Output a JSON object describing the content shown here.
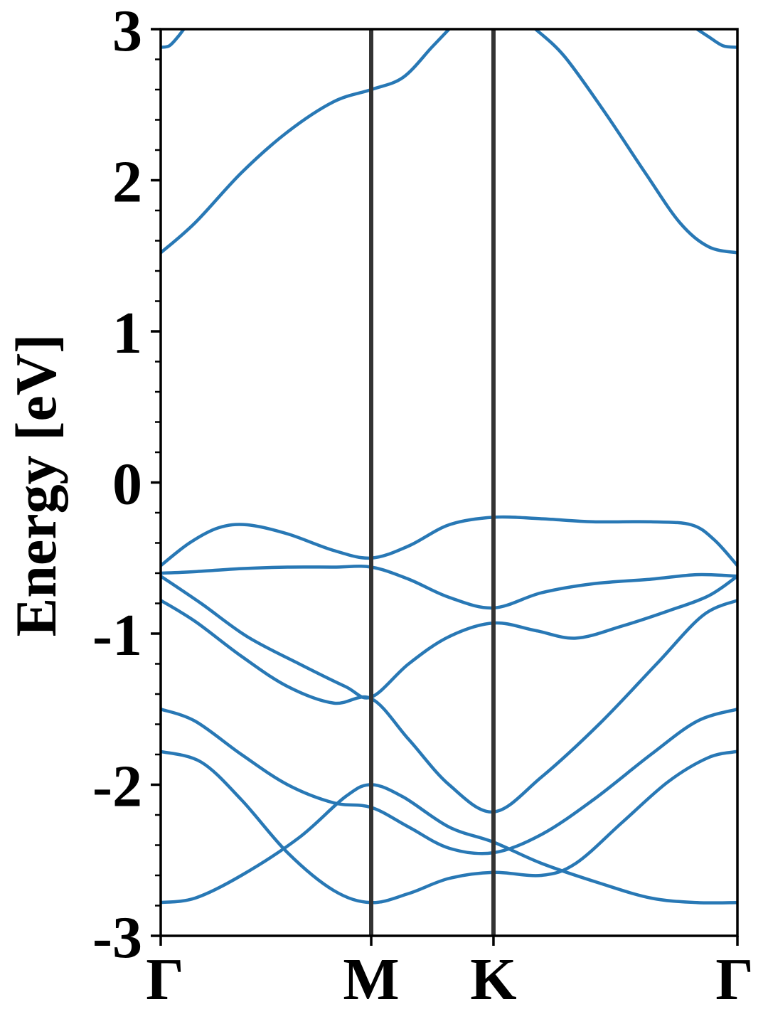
{
  "chart_data": {
    "type": "line",
    "title": "",
    "xlabel": "",
    "ylabel": "Energy [eV]",
    "ylim": [
      -3,
      3
    ],
    "y_ticks": [
      "-3",
      "-2",
      "-1",
      "0",
      "1",
      "2",
      "3"
    ],
    "y_tick_values": [
      -3,
      -2,
      -1,
      0,
      1,
      2,
      3
    ],
    "x_ticks": [
      {
        "label": "Γ",
        "pos": 0.0
      },
      {
        "label": "M",
        "pos": 0.365
      },
      {
        "label": "K",
        "pos": 0.577
      },
      {
        "label": "Γ",
        "pos": 1.0
      }
    ],
    "xlim": [
      0,
      1
    ],
    "high_symmetry_lines": [
      0.365,
      0.577
    ],
    "grid": false,
    "line_color": "#2878b5",
    "vline_color": "#333333",
    "series": [
      {
        "x": [
          0,
          0.06,
          0.14,
          0.24,
          0.32,
          0.365,
          0.42,
          0.5,
          0.577,
          0.66,
          0.76,
          0.85,
          0.93,
          1.0
        ],
        "y": [
          -2.78,
          -2.75,
          -2.6,
          -2.35,
          -2.08,
          -2.0,
          -2.08,
          -2.28,
          -2.38,
          -2.52,
          -2.65,
          -2.75,
          -2.78,
          -2.78
        ]
      },
      {
        "x": [
          0,
          0.07,
          0.14,
          0.22,
          0.3,
          0.365,
          0.43,
          0.5,
          0.577,
          0.66,
          0.72,
          0.8,
          0.88,
          0.95,
          1.0
        ],
        "y": [
          -1.78,
          -1.85,
          -2.1,
          -2.45,
          -2.7,
          -2.78,
          -2.72,
          -2.62,
          -2.58,
          -2.6,
          -2.52,
          -2.25,
          -1.98,
          -1.82,
          -1.78
        ]
      },
      {
        "x": [
          0,
          0.06,
          0.14,
          0.22,
          0.3,
          0.365,
          0.43,
          0.5,
          0.577,
          0.66,
          0.75,
          0.85,
          0.93,
          1.0
        ],
        "y": [
          -1.5,
          -1.58,
          -1.8,
          -2.0,
          -2.12,
          -2.15,
          -2.28,
          -2.42,
          -2.45,
          -2.33,
          -2.1,
          -1.8,
          -1.58,
          -1.5
        ]
      },
      {
        "x": [
          0,
          0.06,
          0.14,
          0.22,
          0.3,
          0.365,
          0.43,
          0.5,
          0.577,
          0.66,
          0.76,
          0.86,
          0.94,
          1.0
        ],
        "y": [
          -0.78,
          -0.92,
          -1.15,
          -1.35,
          -1.46,
          -1.43,
          -1.7,
          -2.0,
          -2.18,
          -1.95,
          -1.6,
          -1.2,
          -0.88,
          -0.78
        ]
      },
      {
        "x": [
          0,
          0.07,
          0.15,
          0.24,
          0.32,
          0.365,
          0.43,
          0.5,
          0.577,
          0.65,
          0.72,
          0.8,
          0.88,
          0.95,
          1.0
        ],
        "y": [
          -0.62,
          -0.8,
          -1.02,
          -1.2,
          -1.35,
          -1.42,
          -1.2,
          -1.02,
          -0.93,
          -0.98,
          -1.03,
          -0.95,
          -0.85,
          -0.75,
          -0.62
        ]
      },
      {
        "x": [
          0,
          0.06,
          0.14,
          0.22,
          0.3,
          0.365,
          0.43,
          0.5,
          0.577,
          0.66,
          0.75,
          0.85,
          0.93,
          1.0
        ],
        "y": [
          -0.6,
          -0.59,
          -0.57,
          -0.56,
          -0.56,
          -0.56,
          -0.64,
          -0.76,
          -0.83,
          -0.73,
          -0.67,
          -0.64,
          -0.61,
          -0.62
        ]
      },
      {
        "x": [
          0,
          0.05,
          0.1,
          0.15,
          0.22,
          0.3,
          0.365,
          0.43,
          0.5,
          0.577,
          0.66,
          0.75,
          0.85,
          0.92,
          0.96,
          1.0
        ],
        "y": [
          -0.55,
          -0.4,
          -0.3,
          -0.28,
          -0.34,
          -0.45,
          -0.5,
          -0.42,
          -0.28,
          -0.23,
          -0.24,
          -0.26,
          -0.26,
          -0.28,
          -0.38,
          -0.55
        ]
      },
      {
        "x": [
          0,
          0.06,
          0.14,
          0.22,
          0.3,
          0.365,
          0.42,
          0.47,
          0.5
        ],
        "y": [
          1.52,
          1.72,
          2.05,
          2.32,
          2.52,
          2.6,
          2.68,
          2.88,
          3.0
        ]
      },
      {
        "x": [
          0.65,
          0.7,
          0.77,
          0.84,
          0.9,
          0.95,
          1.0
        ],
        "y": [
          3.0,
          2.82,
          2.45,
          2.05,
          1.72,
          1.56,
          1.52
        ]
      },
      {
        "x": [
          0,
          0.015,
          0.03,
          0.04
        ],
        "y": [
          2.88,
          2.89,
          2.95,
          3.0
        ]
      },
      {
        "x": [
          0.93,
          0.95,
          0.975,
          1.0
        ],
        "y": [
          3.0,
          2.95,
          2.89,
          2.88
        ]
      }
    ]
  }
}
